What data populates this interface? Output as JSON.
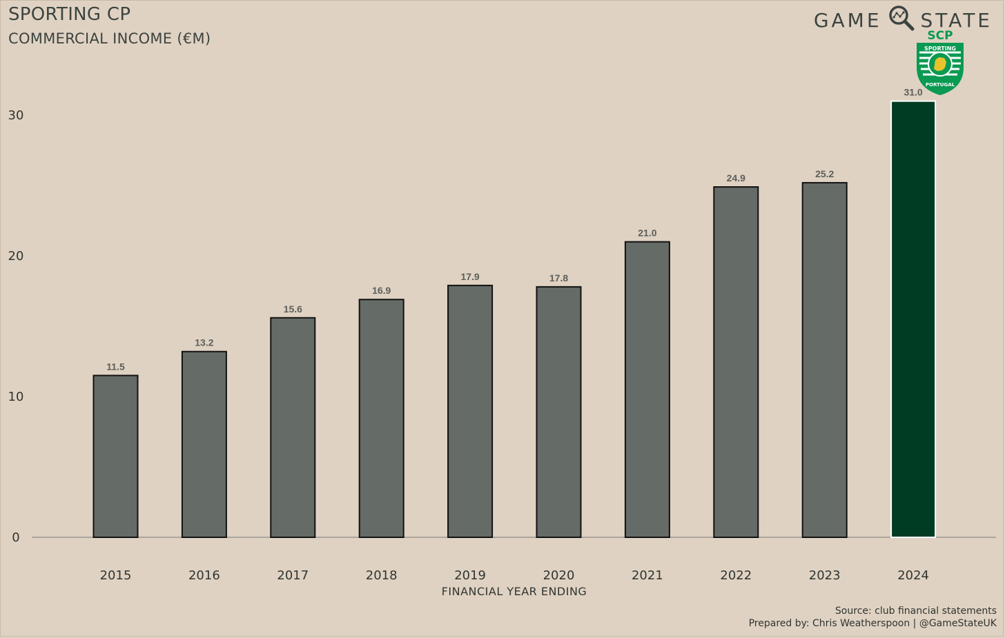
{
  "header": {
    "title": "SPORTING CP",
    "subtitle": "COMMERCIAL INCOME (€M)"
  },
  "brand": {
    "left": "GAME",
    "right": "STATE",
    "icon": "magnifier-icon"
  },
  "club_logo": {
    "icon": "sporting-cp-crest",
    "text_top": "SCP",
    "ring_top": "SPORTING",
    "ring_bottom": "PORTUGAL"
  },
  "footer": {
    "source": "Source: club financial statements",
    "credit": "Prepared by: Chris Weatherspoon | @GameStateUK"
  },
  "colors": {
    "background": "#e0d2c2",
    "bar": "#656b67",
    "highlight_bar": "#003c23",
    "axis": "#9a9690"
  },
  "chart_data": {
    "type": "bar",
    "title": "SPORTING CP",
    "subtitle": "COMMERCIAL INCOME (€M)",
    "xlabel": "FINANCIAL YEAR ENDING",
    "ylabel": "",
    "categories": [
      "2015",
      "2016",
      "2017",
      "2018",
      "2019",
      "2020",
      "2021",
      "2022",
      "2023",
      "2024"
    ],
    "values": [
      11.5,
      13.2,
      15.6,
      16.9,
      17.9,
      17.8,
      21.0,
      24.9,
      25.2,
      31.0
    ],
    "value_labels": [
      "11.5",
      "13.2",
      "15.6",
      "16.9",
      "17.9",
      "17.8",
      "21.0",
      "24.9",
      "25.2",
      "31.0"
    ],
    "highlight": "2024",
    "ylim": [
      0,
      31.5
    ],
    "yticks": [
      0,
      10,
      20,
      30
    ],
    "grid": false,
    "legend": "none"
  }
}
